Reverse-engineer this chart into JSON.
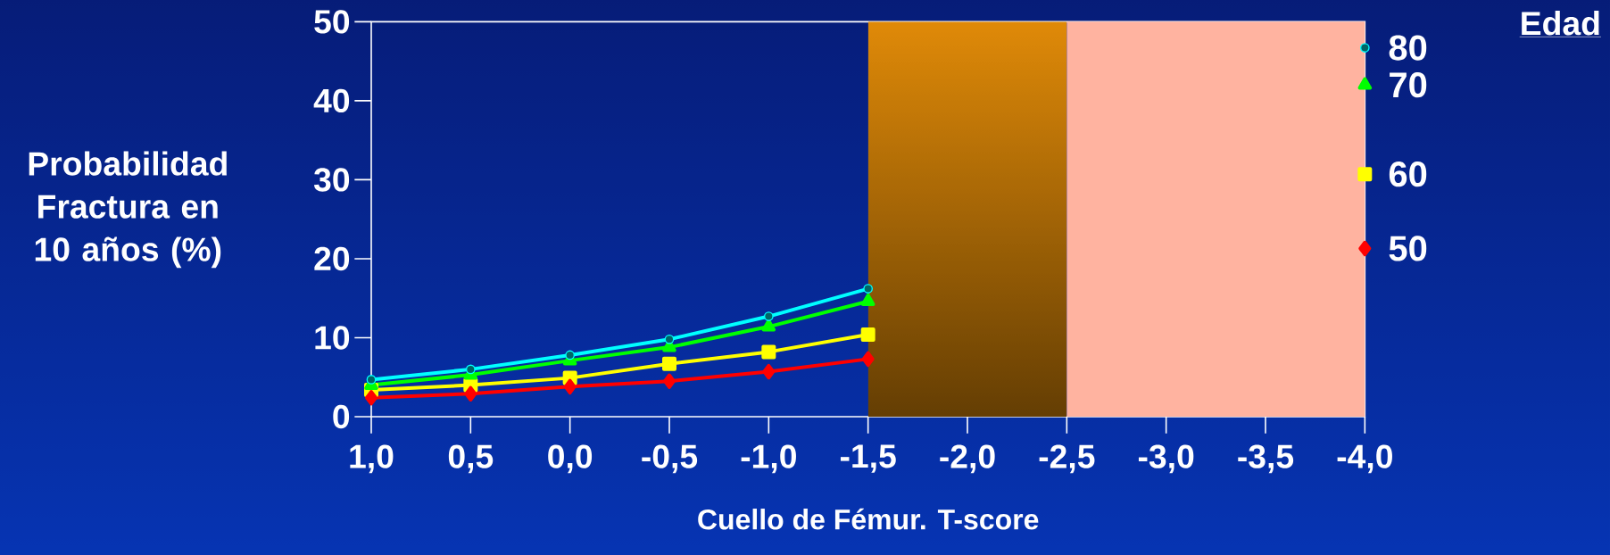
{
  "chart_data": {
    "type": "line",
    "xlabel": "Cuello de Fémur. T-score",
    "ylabel": "Probabilidad Fractura en 10 años (%)",
    "legend_title": "Edad",
    "x": [
      1.0,
      0.5,
      0.0,
      -0.5,
      -1.0,
      -1.5,
      -2.0,
      -2.5,
      -3.0,
      -3.5,
      -4.0
    ],
    "series": [
      {
        "name": "80",
        "color": "#00ffff",
        "marker": "circle",
        "values": [
          4.7,
          6.0,
          7.8,
          9.8,
          12.7,
          16.2,
          null,
          null,
          null,
          null,
          46.7
        ]
      },
      {
        "name": "70",
        "color": "#00ff00",
        "marker": "triangle",
        "values": [
          4.0,
          5.3,
          7.1,
          8.8,
          11.4,
          14.6,
          null,
          null,
          null,
          null,
          42.0
        ]
      },
      {
        "name": "60",
        "color": "#ffff00",
        "marker": "square",
        "values": [
          3.4,
          4.0,
          4.9,
          6.7,
          8.2,
          10.4,
          null,
          null,
          null,
          null,
          30.7
        ]
      },
      {
        "name": "50",
        "color": "#ff0000",
        "marker": "diamond",
        "values": [
          2.4,
          2.9,
          3.8,
          4.5,
          5.7,
          7.3,
          null,
          null,
          null,
          null,
          21.3
        ]
      }
    ],
    "xlim": [
      1.0,
      -4.0
    ],
    "xticks": [
      {
        "value": 1.0,
        "label": "1,0"
      },
      {
        "value": 0.5,
        "label": "0,5"
      },
      {
        "value": 0.0,
        "label": "0,0"
      },
      {
        "value": -0.5,
        "label": "-0,5"
      },
      {
        "value": -1.0,
        "label": "-1,0"
      },
      {
        "value": -1.5,
        "label": "-1,5"
      },
      {
        "value": -2.0,
        "label": "-2,0"
      },
      {
        "value": -2.5,
        "label": "-2,5"
      },
      {
        "value": -3.0,
        "label": "-3,0"
      },
      {
        "value": -3.5,
        "label": "-3,5"
      },
      {
        "value": -4.0,
        "label": "-4,0"
      }
    ],
    "ylim": [
      0,
      50
    ],
    "yticks": [
      0,
      10,
      20,
      30,
      40,
      50
    ],
    "bands": [
      {
        "axis": "x",
        "from": -1.5,
        "to": -2.5,
        "color": "#e08a08"
      },
      {
        "axis": "x",
        "from": -2.5,
        "to": -4.0,
        "color": "#ffb3a0"
      }
    ],
    "grid": false,
    "legend": false
  }
}
